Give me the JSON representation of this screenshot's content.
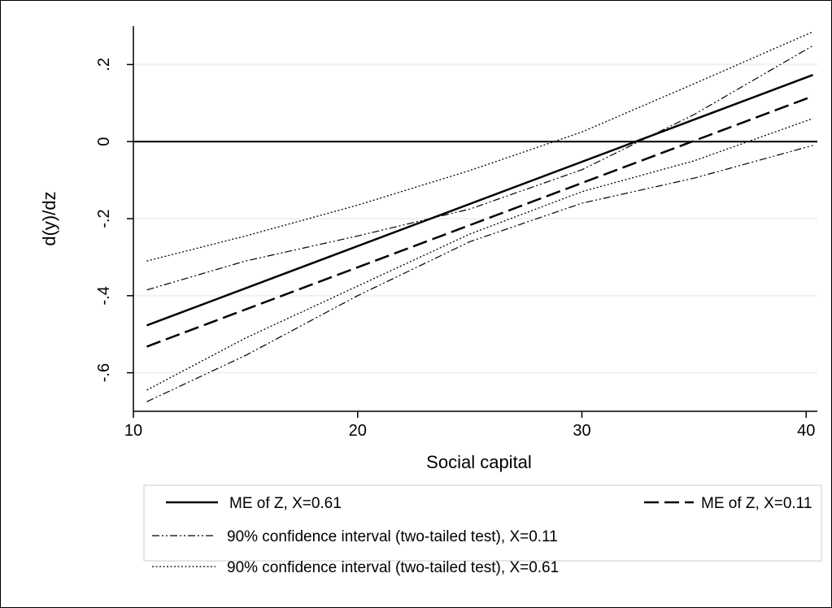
{
  "chart_data": {
    "type": "line",
    "xlabel": "Social capital",
    "ylabel": "d(y)/dz",
    "xlim": [
      10,
      40.5
    ],
    "ylim": [
      -0.7,
      0.3
    ],
    "xticks": [
      10,
      20,
      30,
      40
    ],
    "xtick_labels": [
      "10",
      "20",
      "30",
      "40"
    ],
    "yticks": [
      0.2,
      0,
      -0.2,
      -0.4,
      -0.6
    ],
    "ytick_labels": [
      ".2",
      "0",
      "-.2",
      "-.4",
      "-.6"
    ],
    "grid": true,
    "reference_line_y": 0,
    "legend_position": "bottom",
    "series": [
      {
        "name": "ME of Z, X=0.61",
        "style": "solid",
        "x": [
          10.6,
          40.3
        ],
        "y": [
          -0.477,
          0.173
        ]
      },
      {
        "name": "ME of Z, X=0.11",
        "style": "dash",
        "x": [
          10.6,
          40.3
        ],
        "y": [
          -0.532,
          0.118
        ]
      },
      {
        "name": "90% confidence interval (two-tailed test),  X=0.11",
        "style": "dashdotdot",
        "x": [
          10.6,
          15,
          20,
          25,
          30,
          35,
          40.3
        ],
        "y": [
          -0.385,
          -0.31,
          -0.245,
          -0.175,
          -0.073,
          0.07,
          0.249
        ]
      },
      {
        "name": "90% confidence interval (two-tailed test),  X=0.11",
        "style": "dashdotdot",
        "x": [
          10.6,
          15,
          20,
          25,
          30,
          35,
          40.3
        ],
        "y": [
          -0.675,
          -0.555,
          -0.4,
          -0.26,
          -0.16,
          -0.095,
          -0.01
        ]
      },
      {
        "name": "90% confidence interval (two-tailed test),  X=0.61",
        "style": "dot",
        "x": [
          10.6,
          15,
          20,
          25,
          30,
          35,
          40.3
        ],
        "y": [
          -0.31,
          -0.245,
          -0.165,
          -0.075,
          0.025,
          0.15,
          0.285
        ]
      },
      {
        "name": "90% confidence interval (two-tailed test),  X=0.61",
        "style": "dot",
        "x": [
          10.6,
          15,
          20,
          25,
          30,
          35,
          40.3
        ],
        "y": [
          -0.645,
          -0.51,
          -0.375,
          -0.24,
          -0.13,
          -0.05,
          0.06
        ]
      }
    ],
    "legend": [
      {
        "label": "ME of Z, X=0.61",
        "style": "solid"
      },
      {
        "label": "ME of Z, X=0.11",
        "style": "dash"
      },
      {
        "label": "90% confidence interval (two-tailed test),  X=0.11",
        "style": "dashdotdot"
      },
      {
        "label": "90% confidence interval (two-tailed test),  X=0.61",
        "style": "dot"
      }
    ]
  }
}
